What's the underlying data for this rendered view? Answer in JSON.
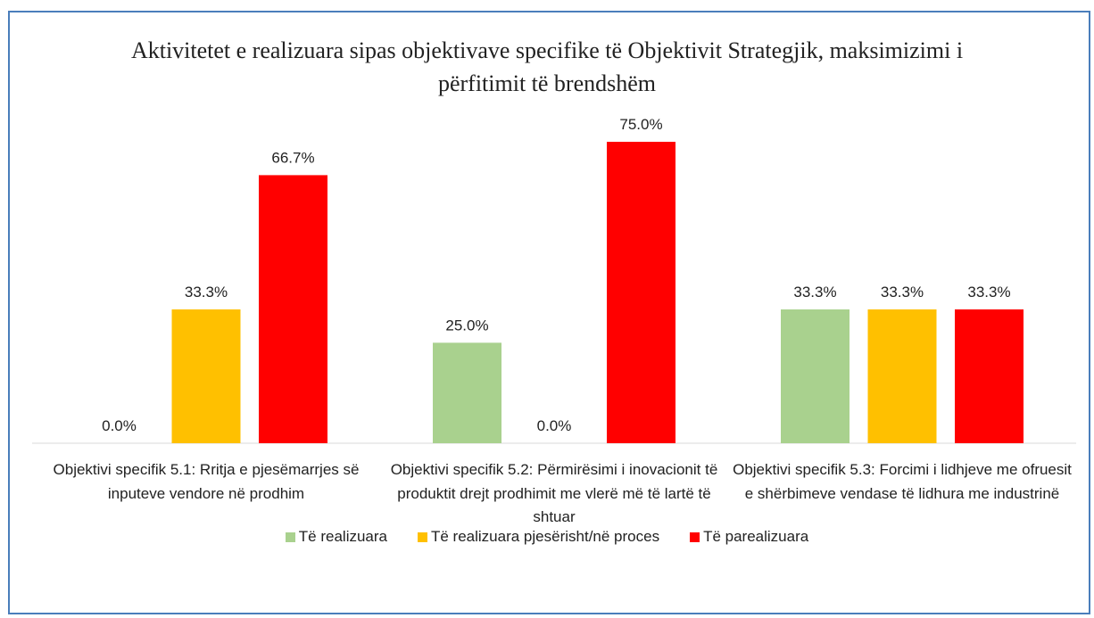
{
  "chart_data": {
    "type": "bar",
    "title": "Aktivitetet e realizuara sipas objektivave specifike të Objektivit Strategjik, maksimizimi i përfitimit të brendshëm",
    "categories": [
      "Objektivi specifik 5.1: Rritja e pjesëmarrjes së inputeve vendore në prodhim",
      "Objektivi specifik 5.2: Përmirësimi i inovacionit të produktit drejt prodhimit me vlerë më të lartë të shtuar",
      "Objektivi specifik 5.3: Forcimi i lidhjeve me ofruesit e shërbimeve vendase të lidhura me industrinë"
    ],
    "series": [
      {
        "name": "Të realizuara",
        "color": "#a9d18e",
        "values": [
          0,
          25,
          33.3
        ],
        "value_labels": [
          "0.0%",
          "25.0%",
          "33.3%"
        ]
      },
      {
        "name": "Të realizuara pjesërisht/në proces",
        "color": "#ffc000",
        "values": [
          33.3,
          0,
          33.3
        ],
        "value_labels": [
          "33.3%",
          "0.0%",
          "33.3%"
        ]
      },
      {
        "name": "Të parealizuara",
        "color": "#ff0000",
        "values": [
          66.7,
          75,
          33.3
        ],
        "value_labels": [
          "66.7%",
          "75.0%",
          "33.3%"
        ]
      }
    ],
    "legend": "bottom"
  }
}
